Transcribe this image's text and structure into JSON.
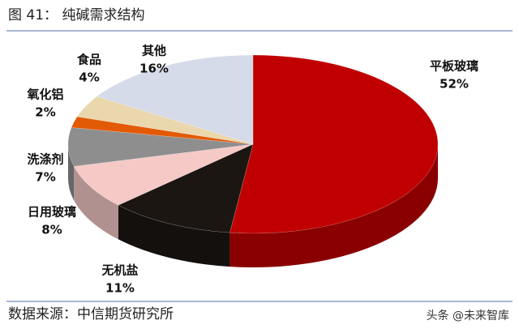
{
  "chart_data": {
    "type": "pie",
    "title": "图 41：    纯碱需求结构",
    "categories": [
      "平板玻璃",
      "无机盐",
      "日用玻璃",
      "洗涤剂",
      "氧化铝",
      "食品",
      "其他"
    ],
    "values": [
      52,
      11,
      8,
      7,
      2,
      4,
      16
    ],
    "value_labels": [
      "52%",
      "11%",
      "8%",
      "7%",
      "2%",
      "4%",
      "16%"
    ],
    "colors": [
      "#c00000",
      "#1c1612",
      "#f4c9c6",
      "#8e8e8e",
      "#e35a06",
      "#ead7ad",
      "#d5dbe8"
    ],
    "source": "数据来源：中信期货研究所",
    "watermark": "头条 @未来智库"
  }
}
